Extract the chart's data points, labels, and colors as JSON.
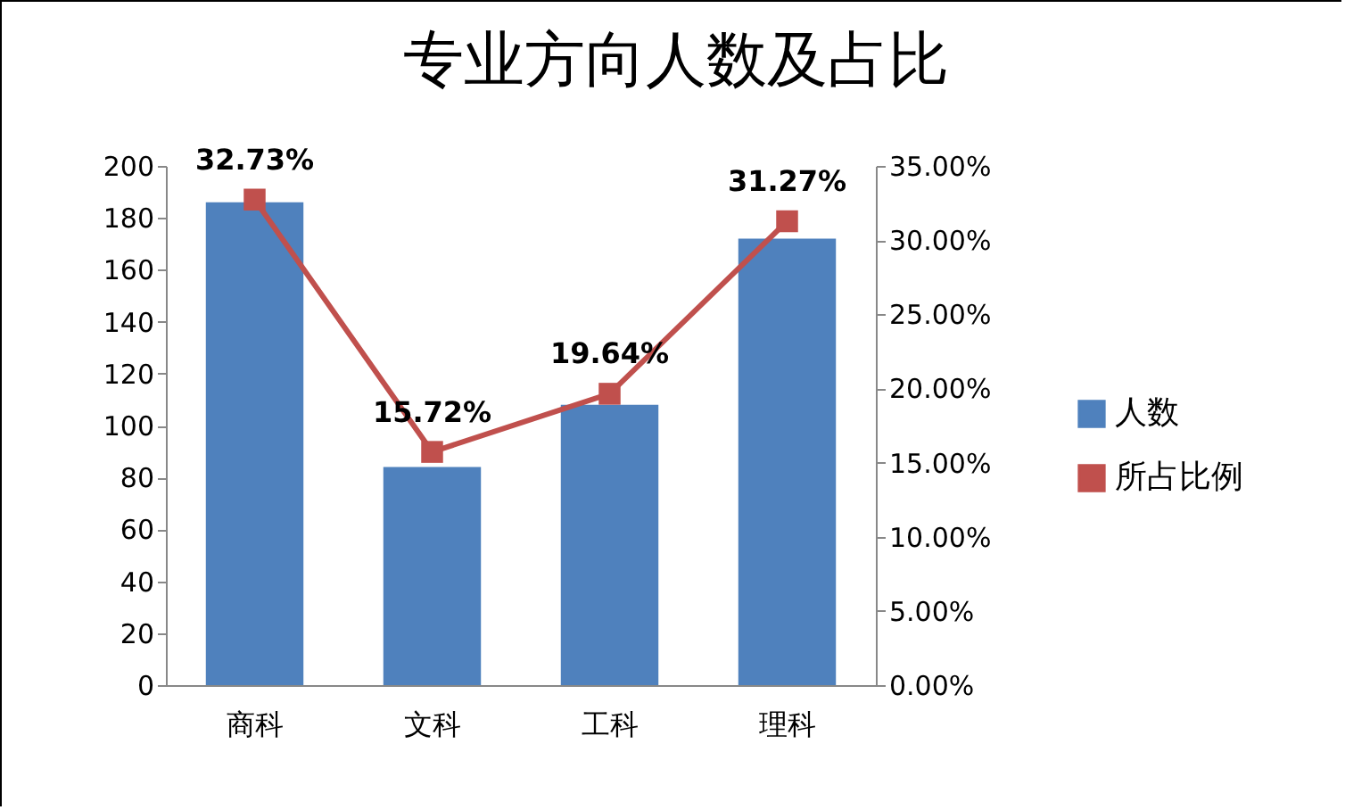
{
  "chart_data": {
    "type": "bar",
    "title": "专业方向人数及占比",
    "categories": [
      "商科",
      "文科",
      "工科",
      "理科"
    ],
    "series": [
      {
        "name": "人数",
        "color": "#4f81bd",
        "values": [
          186,
          84,
          108,
          172
        ]
      },
      {
        "name": "所占比例",
        "type": "line",
        "axis": "y2",
        "color": "#c0504d",
        "marker": "square",
        "values": [
          32.73,
          15.72,
          19.64,
          31.27
        ],
        "value_labels": [
          "32.73%",
          "15.72%",
          "19.64%",
          "31.27%"
        ]
      }
    ],
    "ylim": [
      0,
      200
    ],
    "yticks": [
      0,
      20,
      40,
      60,
      80,
      100,
      120,
      140,
      160,
      180,
      200
    ],
    "y2lim": [
      0,
      35
    ],
    "y2ticks": [
      {
        "value": 0,
        "label": "0.00%"
      },
      {
        "value": 5,
        "label": "5.00%"
      },
      {
        "value": 10,
        "label": "10.00%"
      },
      {
        "value": 15,
        "label": "15.00%"
      },
      {
        "value": 20,
        "label": "20.00%"
      },
      {
        "value": 25,
        "label": "25.00%"
      },
      {
        "value": 30,
        "label": "30.00%"
      },
      {
        "value": 35,
        "label": "35.00%"
      }
    ],
    "legend": "right",
    "grid": false
  }
}
